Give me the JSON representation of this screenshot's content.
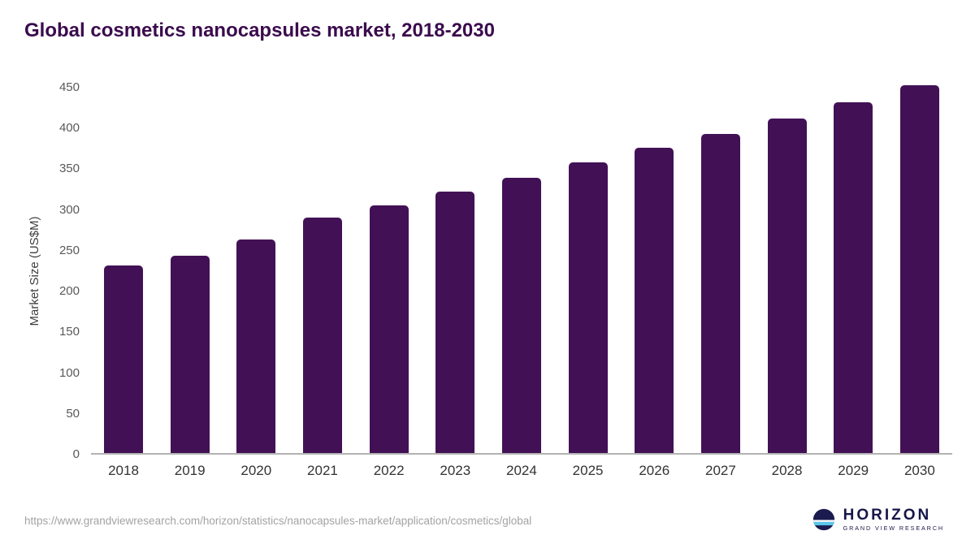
{
  "chart_data": {
    "type": "bar",
    "title": "Global cosmetics nanocapsules market, 2018-2030",
    "categories": [
      "2018",
      "2019",
      "2020",
      "2021",
      "2022",
      "2023",
      "2024",
      "2025",
      "2026",
      "2027",
      "2028",
      "2029",
      "2030"
    ],
    "values": [
      230,
      242,
      262,
      289,
      304,
      321,
      338,
      356,
      374,
      391,
      410,
      430,
      451
    ],
    "xlabel": "",
    "ylabel": "Market Size (US$M)",
    "ylim": [
      0,
      450
    ],
    "yticks": [
      0,
      50,
      100,
      150,
      200,
      250,
      300,
      350,
      400,
      450
    ],
    "grid": false,
    "legend": "none",
    "bar_color": "#421155"
  },
  "footer": {
    "source_url": "https://www.grandviewresearch.com/horizon/statistics/nanocapsules-market/application/cosmetics/global",
    "logo_title": "HORIZON",
    "logo_subtitle": "GRAND VIEW RESEARCH"
  },
  "colors": {
    "bar": "#421155",
    "title": "#3b0b4d",
    "axis_line": "#b3b3b3",
    "logo_navy": "#1b1b4f",
    "logo_blue": "#5bc6e8"
  }
}
